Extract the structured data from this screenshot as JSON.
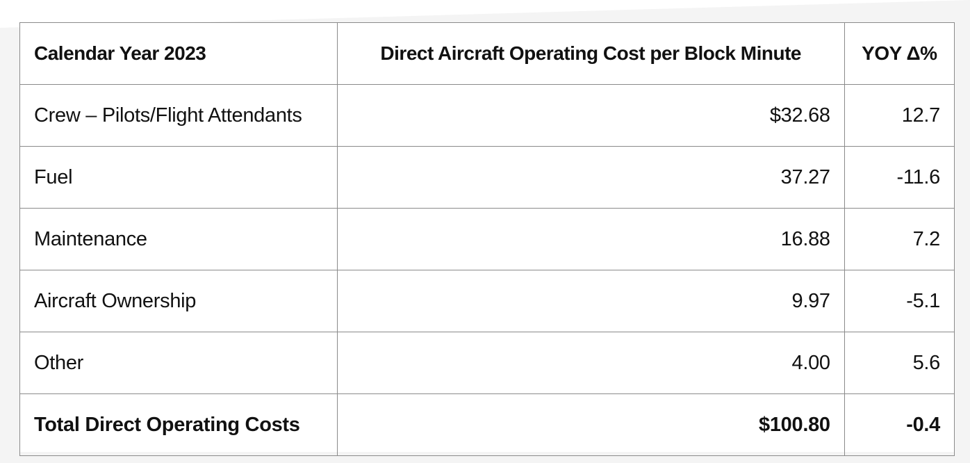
{
  "table": {
    "headers": [
      "Calendar Year 2023",
      "Direct Aircraft Operating Cost per Block Minute",
      "YOY Δ%"
    ],
    "rows": [
      {
        "category": "Crew – Pilots/Flight Attendants",
        "cost": "$32.68",
        "yoy": "12.7"
      },
      {
        "category": "Fuel",
        "cost": "37.27",
        "yoy": "-11.6"
      },
      {
        "category": "Maintenance",
        "cost": "16.88",
        "yoy": "7.2"
      },
      {
        "category": "Aircraft Ownership",
        "cost": "9.97",
        "yoy": "-5.1"
      },
      {
        "category": "Other",
        "cost": "4.00",
        "yoy": "5.6"
      }
    ],
    "total": {
      "category": "Total Direct Operating Costs",
      "cost": "$100.80",
      "yoy": "-0.4"
    }
  },
  "colors": {
    "border": "#8a8a8a",
    "text": "#111111",
    "background": "#f4f4f4"
  }
}
